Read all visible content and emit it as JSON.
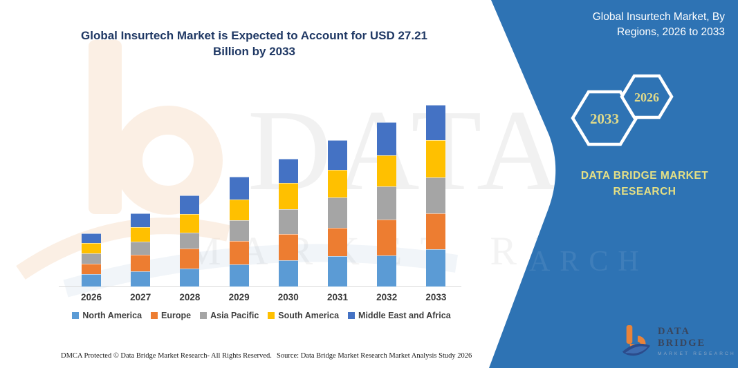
{
  "title": {
    "text": "Global Insurtech Market is Expected to Account for USD 27.21 Billion by 2033"
  },
  "side_panel": {
    "heading": "Global Insurtech Market, By Regions, 2026 to 2033",
    "hexagons": [
      {
        "label": "2033"
      },
      {
        "label": "2026"
      }
    ],
    "brand_text": "DATA BRIDGE MARKET RESEARCH",
    "panel_color": "#2E73B4",
    "accent_text_color": "#E6E084"
  },
  "watermark": {
    "line1": "DATA BRI",
    "line2": "MARKET RE",
    "line2_on_panel": "SEARCH"
  },
  "logo": {
    "brand": "DATA BRIDGE",
    "tagline": "MARKET RESEARCH"
  },
  "footer": {
    "left": "DMCA Protected © Data Bridge Market Research-  All Rights Reserved.",
    "right": "Source: Data Bridge Market Research  Market Analysis Study 2026"
  },
  "chart_data": {
    "type": "bar",
    "stacked": true,
    "title": "Global Insurtech Market is Expected to Account for USD 27.21 Billion by 2033",
    "unit": "USD Billion",
    "categories": [
      "2026",
      "2027",
      "2028",
      "2029",
      "2030",
      "2031",
      "2032",
      "2033"
    ],
    "series": [
      {
        "name": "North America",
        "color": "#5B9BD5",
        "values": [
          1.85,
          2.25,
          2.7,
          3.35,
          3.9,
          4.6,
          4.65,
          5.59
        ]
      },
      {
        "name": "Europe",
        "color": "#ED7D31",
        "values": [
          1.6,
          2.5,
          3.0,
          3.45,
          3.95,
          4.2,
          5.35,
          5.34
        ]
      },
      {
        "name": "Asia Pacific",
        "color": "#A5A5A5",
        "values": [
          1.55,
          2.0,
          2.4,
          3.1,
          3.75,
          4.5,
          5.0,
          5.38
        ]
      },
      {
        "name": "South America",
        "color": "#FFC000",
        "values": [
          1.5,
          2.15,
          2.75,
          3.15,
          3.9,
          4.15,
          4.65,
          5.59
        ]
      },
      {
        "name": "Middle East and Africa",
        "color": "#4472C4",
        "values": [
          1.45,
          2.1,
          2.85,
          3.35,
          3.65,
          4.5,
          5.0,
          5.31
        ]
      }
    ],
    "totals": [
      7.95,
      11.0,
      13.7,
      16.4,
      19.15,
      21.95,
      24.65,
      27.21
    ],
    "ylim": [
      0,
      28
    ],
    "y_axis_visible": false,
    "gridlines": false,
    "legend_position": "bottom"
  }
}
